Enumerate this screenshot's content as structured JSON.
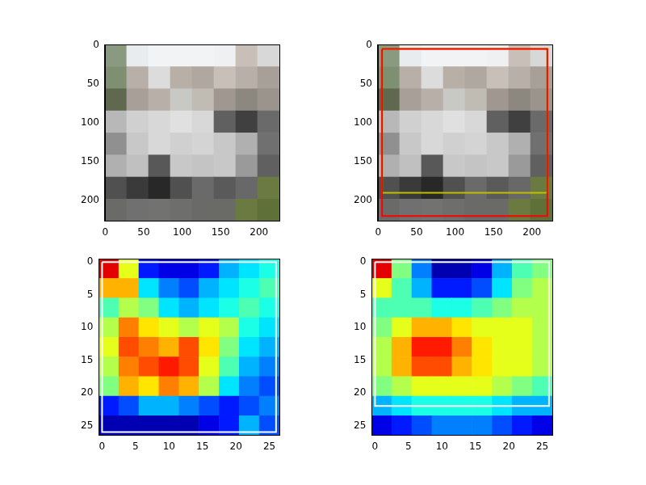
{
  "chart_data": [
    {
      "type": "image",
      "xlim": [
        -0.5,
        226.5
      ],
      "ylim": [
        226.5,
        -0.5
      ],
      "xticks": [
        0,
        50,
        100,
        150,
        200
      ],
      "yticks": [
        0,
        50,
        100,
        150,
        200
      ],
      "grid": false,
      "pixels": [
        [
          "#8a9a80",
          "#e8ecef",
          "#f2f3f5",
          "#f2f3f5",
          "#f2f3f5",
          "#eef0f2",
          "#c8c0b8",
          "#d8d8d8"
        ],
        [
          "#7f8f72",
          "#b8b0a8",
          "#dcdcdc",
          "#b8b0a6",
          "#b0a8a0",
          "#c8c0b8",
          "#b8b0a8",
          "#a8a098"
        ],
        [
          "#606850",
          "#a8a098",
          "#b8b0a8",
          "#c8c8c4",
          "#c0bcb4",
          "#a09890",
          "#8c8880",
          "#9a948c"
        ],
        [
          "#b8b8b8",
          "#d0d0d0",
          "#d8d8d8",
          "#e0e0e0",
          "#d8d8d8",
          "#606060",
          "#404040",
          "#6a6a6a"
        ],
        [
          "#909090",
          "#c8c8c8",
          "#d8d8d8",
          "#d0d0d0",
          "#d4d4d4",
          "#c8c8c8",
          "#b0b0b0",
          "#707070"
        ],
        [
          "#b0b0b0",
          "#c0c0c0",
          "#585858",
          "#c8c8c8",
          "#c4c4c4",
          "#c8c8c8",
          "#9a9a9a",
          "#606060"
        ],
        [
          "#505050",
          "#3a3a3a",
          "#282828",
          "#505050",
          "#6a6a6a",
          "#5a5a5a",
          "#686868",
          "#6a7a40"
        ],
        [
          "#6a6a68",
          "#707070",
          "#727270",
          "#6e6e6c",
          "#6a6a68",
          "#6a6a66",
          "#6a7a40",
          "#5f7038"
        ]
      ]
    },
    {
      "type": "image",
      "xlim": [
        -0.5,
        226.5
      ],
      "ylim": [
        226.5,
        -0.5
      ],
      "xticks": [
        0,
        50,
        100,
        150,
        200
      ],
      "yticks": [
        0,
        50,
        100,
        150,
        200
      ],
      "grid": false,
      "pixels": [
        [
          "#8a9a80",
          "#e8ecef",
          "#f2f3f5",
          "#f2f3f5",
          "#f2f3f5",
          "#eef0f2",
          "#c8c0b8",
          "#d8d8d8"
        ],
        [
          "#7f8f72",
          "#b8b0a8",
          "#dcdcdc",
          "#b8b0a6",
          "#b0a8a0",
          "#c8c0b8",
          "#b8b0a8",
          "#a8a098"
        ],
        [
          "#606850",
          "#a8a098",
          "#b8b0a8",
          "#c8c8c4",
          "#c0bcb4",
          "#a09890",
          "#8c8880",
          "#9a948c"
        ],
        [
          "#b8b8b8",
          "#d0d0d0",
          "#d8d8d8",
          "#e0e0e0",
          "#d8d8d8",
          "#606060",
          "#404040",
          "#6a6a6a"
        ],
        [
          "#909090",
          "#c8c8c8",
          "#d8d8d8",
          "#d0d0d0",
          "#d4d4d4",
          "#c8c8c8",
          "#b0b0b0",
          "#707070"
        ],
        [
          "#b0b0b0",
          "#c0c0c0",
          "#585858",
          "#c8c8c8",
          "#c4c4c4",
          "#c8c8c8",
          "#9a9a9a",
          "#606060"
        ],
        [
          "#505050",
          "#3a3a3a",
          "#282828",
          "#505050",
          "#6a6a6a",
          "#5a5a5a",
          "#686868",
          "#6a7a40"
        ],
        [
          "#6a6a68",
          "#707070",
          "#727270",
          "#6e6e6c",
          "#6a6a68",
          "#6a6a66",
          "#6a7a40",
          "#5f7038"
        ]
      ],
      "boxes": [
        {
          "x": [
            5,
            220
          ],
          "y": [
            5,
            220
          ],
          "color": "#ff0000"
        },
        {
          "x": [
            5,
            220
          ],
          "y": [
            5,
            190
          ],
          "color": "#bfbf00"
        }
      ]
    },
    {
      "type": "heatmap",
      "xlim": [
        -0.5,
        26.5
      ],
      "ylim": [
        26.5,
        -0.5
      ],
      "xticks": [
        0,
        5,
        10,
        15,
        20,
        25
      ],
      "yticks": [
        0,
        5,
        10,
        15,
        20,
        25
      ],
      "grid": false,
      "color": "jet",
      "color_range": [
        0,
        1
      ],
      "cells": [
        [
          0.9,
          0.6,
          0.15,
          0.1,
          0.1,
          0.15,
          0.3,
          0.35,
          0.4
        ],
        [
          0.7,
          0.7,
          0.35,
          0.25,
          0.2,
          0.3,
          0.35,
          0.4,
          0.45
        ],
        [
          0.45,
          0.55,
          0.5,
          0.35,
          0.3,
          0.35,
          0.4,
          0.45,
          0.4
        ],
        [
          0.55,
          0.75,
          0.65,
          0.6,
          0.55,
          0.6,
          0.55,
          0.4,
          0.35
        ],
        [
          0.6,
          0.8,
          0.75,
          0.7,
          0.8,
          0.65,
          0.5,
          0.35,
          0.3
        ],
        [
          0.55,
          0.75,
          0.8,
          0.85,
          0.8,
          0.6,
          0.45,
          0.3,
          0.25
        ],
        [
          0.5,
          0.7,
          0.65,
          0.75,
          0.7,
          0.55,
          0.35,
          0.25,
          0.2
        ],
        [
          0.15,
          0.2,
          0.3,
          0.3,
          0.25,
          0.2,
          0.15,
          0.2,
          0.25
        ],
        [
          0.05,
          0.05,
          0.05,
          0.05,
          0.05,
          0.1,
          0.15,
          0.3,
          0.2
        ]
      ],
      "boxes": [
        {
          "x": [
            0,
            26
          ],
          "y": [
            0,
            26
          ],
          "color": "#ffffff"
        }
      ]
    },
    {
      "type": "heatmap",
      "xlim": [
        -0.5,
        26.5
      ],
      "ylim": [
        26.5,
        -0.5
      ],
      "xticks": [
        0,
        5,
        10,
        15,
        20,
        25
      ],
      "yticks": [
        0,
        5,
        10,
        15,
        20,
        25
      ],
      "grid": false,
      "color": "jet",
      "color_range": [
        0,
        1
      ],
      "cells": [
        [
          0.9,
          0.5,
          0.25,
          0.05,
          0.05,
          0.1,
          0.3,
          0.45,
          0.5
        ],
        [
          0.6,
          0.45,
          0.3,
          0.15,
          0.15,
          0.2,
          0.35,
          0.5,
          0.55
        ],
        [
          0.45,
          0.45,
          0.45,
          0.4,
          0.4,
          0.45,
          0.5,
          0.55,
          0.55
        ],
        [
          0.5,
          0.6,
          0.7,
          0.7,
          0.65,
          0.6,
          0.6,
          0.6,
          0.55
        ],
        [
          0.55,
          0.7,
          0.85,
          0.85,
          0.75,
          0.65,
          0.6,
          0.6,
          0.55
        ],
        [
          0.55,
          0.7,
          0.8,
          0.8,
          0.7,
          0.65,
          0.6,
          0.6,
          0.55
        ],
        [
          0.5,
          0.55,
          0.6,
          0.6,
          0.6,
          0.6,
          0.55,
          0.5,
          0.45
        ],
        [
          0.3,
          0.35,
          0.4,
          0.4,
          0.4,
          0.4,
          0.35,
          0.3,
          0.3
        ],
        [
          0.1,
          0.15,
          0.2,
          0.25,
          0.25,
          0.25,
          0.2,
          0.15,
          0.1
        ]
      ],
      "boxes": [
        {
          "x": [
            0,
            26
          ],
          "y": [
            0,
            22
          ],
          "color": "#ffffff"
        }
      ]
    }
  ]
}
